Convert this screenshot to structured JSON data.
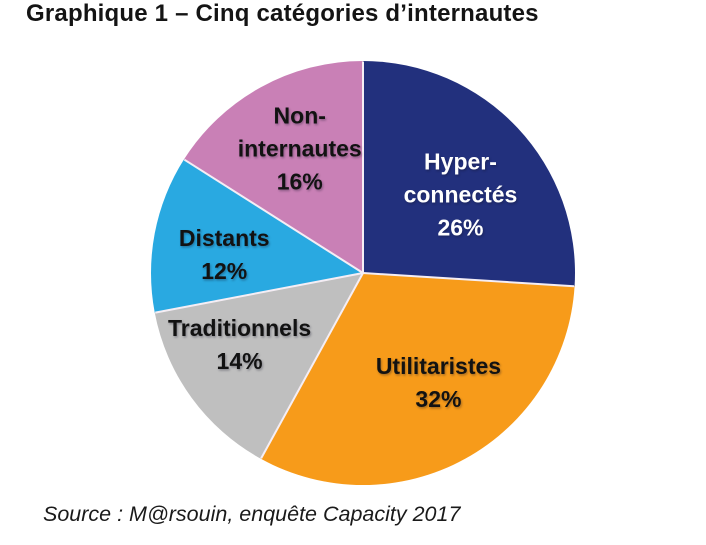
{
  "chart_data": {
    "type": "pie",
    "title": "Graphique 1 – Cinq catégories d’internautes",
    "source": "Source : M@rsouin, enquête Capacity 2017",
    "direction": "clockwise",
    "start_angle_deg": 0,
    "legend": "none",
    "slices": [
      {
        "label": "Hyper-connectés",
        "label_lines": [
          "Hyper-",
          "connectés"
        ],
        "value_pct": 26,
        "value_label": "26%",
        "color": "#22307D",
        "text_color": "#FFFFFF"
      },
      {
        "label": "Utilitaristes",
        "label_lines": [
          "Utilitaristes"
        ],
        "value_pct": 32,
        "value_label": "32%",
        "color": "#F79B1A",
        "text_color": "#121212"
      },
      {
        "label": "Traditionnels",
        "label_lines": [
          "Traditionnels"
        ],
        "value_pct": 14,
        "value_label": "14%",
        "color": "#BFBFBF",
        "text_color": "#121212"
      },
      {
        "label": "Distants",
        "label_lines": [
          "Distants"
        ],
        "value_pct": 12,
        "value_label": "12%",
        "color": "#29A9E1",
        "text_color": "#121212"
      },
      {
        "label": "Non-internautes",
        "label_lines": [
          "Non-",
          "internautes"
        ],
        "value_pct": 16,
        "value_label": "16%",
        "color": "#C980B6",
        "text_color": "#121212"
      }
    ],
    "separator_color": "#F5EEF5"
  }
}
